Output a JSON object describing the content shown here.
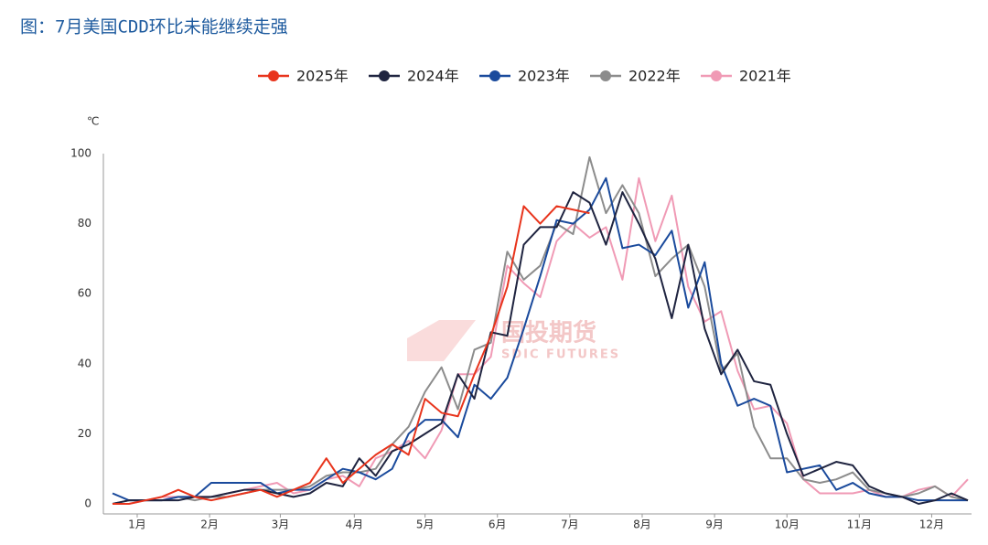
{
  "chart_data": {
    "type": "line",
    "title": "图：7月美国CDD环比未能继续走强",
    "y_label": "℃",
    "watermark": "国投期货",
    "watermark_sub": "SDIC FUTURES",
    "x": [
      0,
      1,
      2,
      3,
      4,
      5,
      6,
      7,
      8,
      9,
      10,
      11,
      12,
      13,
      14,
      15,
      16,
      17,
      18,
      19,
      20,
      21,
      22,
      23,
      24,
      25,
      26,
      27,
      28,
      29,
      30,
      31,
      32,
      33,
      34,
      35,
      36,
      37,
      38,
      39,
      40,
      41,
      42,
      43,
      44,
      45,
      46,
      47,
      48,
      49,
      50,
      51,
      52
    ],
    "xlim": [
      0,
      52
    ],
    "xticks": [
      {
        "value": 1.5,
        "label": "1月"
      },
      {
        "value": 5.9,
        "label": "2月"
      },
      {
        "value": 10.2,
        "label": "3月"
      },
      {
        "value": 14.7,
        "label": "4月"
      },
      {
        "value": 19,
        "label": "5月"
      },
      {
        "value": 23.4,
        "label": "6月"
      },
      {
        "value": 27.8,
        "label": "7月"
      },
      {
        "value": 32.2,
        "label": "8月"
      },
      {
        "value": 36.6,
        "label": "9月"
      },
      {
        "value": 41,
        "label": "10月"
      },
      {
        "value": 45.4,
        "label": "11月"
      },
      {
        "value": 49.8,
        "label": "12月"
      }
    ],
    "ylim": [
      0,
      100
    ],
    "yticks": [
      0,
      20,
      40,
      60,
      80,
      100
    ],
    "grid": false,
    "legend": "top",
    "series": [
      {
        "name": "2025年",
        "color": "#e8341c",
        "values": [
          0,
          0,
          1,
          2,
          4,
          2,
          1,
          2,
          3,
          4,
          2,
          4,
          6,
          13,
          6,
          10,
          14,
          17,
          14,
          30,
          26,
          25,
          37,
          48,
          62,
          85,
          80,
          85,
          84,
          83,
          null,
          null,
          null,
          null,
          null,
          null,
          null,
          null,
          null,
          null,
          null,
          null,
          null,
          null,
          null,
          null,
          null,
          null,
          null,
          null,
          null,
          null,
          null
        ]
      },
      {
        "name": "2024年",
        "color": "#1f2440",
        "values": [
          0,
          1,
          1,
          1,
          1,
          2,
          2,
          3,
          4,
          4,
          3,
          2,
          3,
          6,
          5,
          13,
          8,
          15,
          17,
          20,
          23,
          37,
          30,
          49,
          48,
          74,
          79,
          79,
          89,
          86,
          74,
          89,
          80,
          70,
          53,
          74,
          50,
          37,
          44,
          35,
          34,
          20,
          8,
          10,
          12,
          11,
          5,
          3,
          2,
          0,
          1,
          3,
          1
        ]
      },
      {
        "name": "2023年",
        "color": "#1a4a9c",
        "values": [
          3,
          1,
          1,
          1,
          2,
          2,
          6,
          6,
          6,
          6,
          3,
          4,
          4,
          7,
          10,
          9,
          7,
          10,
          20,
          24,
          24,
          19,
          34,
          30,
          36,
          50,
          65,
          81,
          80,
          84,
          93,
          73,
          74,
          71,
          78,
          56,
          69,
          40,
          28,
          30,
          28,
          9,
          10,
          11,
          4,
          6,
          3,
          2,
          2,
          1,
          1,
          1,
          1
        ]
      },
      {
        "name": "2022年",
        "color": "#8c8c8c",
        "values": [
          0,
          1,
          1,
          1,
          2,
          1,
          2,
          2,
          3,
          4,
          4,
          4,
          5,
          8,
          9,
          9,
          10,
          17,
          22,
          32,
          39,
          27,
          44,
          46,
          72,
          64,
          68,
          80,
          77,
          99,
          83,
          91,
          83,
          65,
          70,
          74,
          62,
          38,
          43,
          22,
          13,
          13,
          7,
          6,
          7,
          9,
          4,
          3,
          2,
          3,
          5,
          2,
          1
        ]
      },
      {
        "name": "2021年",
        "color": "#f09ab5",
        "values": [
          0,
          0,
          1,
          2,
          2,
          2,
          2,
          3,
          4,
          5,
          6,
          3,
          4,
          7,
          8,
          5,
          13,
          15,
          18,
          13,
          21,
          37,
          37,
          42,
          68,
          63,
          59,
          75,
          80,
          76,
          79,
          64,
          93,
          75,
          88,
          62,
          52,
          55,
          38,
          27,
          28,
          23,
          7,
          3,
          3,
          3,
          4,
          2,
          2,
          4,
          5,
          2,
          7
        ]
      }
    ]
  }
}
